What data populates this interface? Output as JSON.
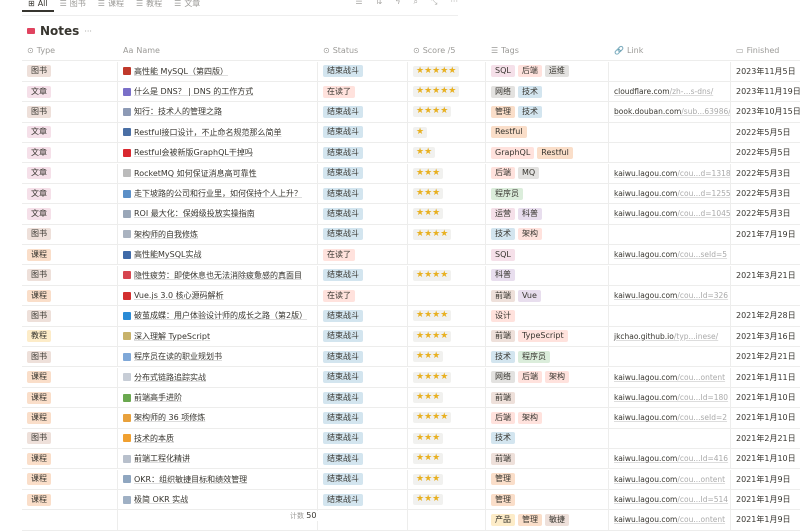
{
  "views": [
    {
      "label": "All",
      "icon": "table-icon",
      "active": true
    },
    {
      "label": "图书",
      "icon": "list-icon"
    },
    {
      "label": "课程",
      "icon": "list-icon"
    },
    {
      "label": "教程",
      "icon": "list-icon"
    },
    {
      "label": "文章",
      "icon": "list-icon"
    }
  ],
  "toolbar": [
    {
      "icon": "filter-icon",
      "glyph": "☰"
    },
    {
      "icon": "sort-icon",
      "glyph": "⇅"
    },
    {
      "icon": "automation-bolt-icon",
      "glyph": "ϟ"
    },
    {
      "icon": "search-icon",
      "glyph": "⌕"
    },
    {
      "icon": "expand-icon",
      "glyph": "⤡"
    },
    {
      "icon": "more-icon",
      "glyph": "···"
    }
  ],
  "title": "Notes",
  "title_more": "···",
  "columns": [
    {
      "label": "Type",
      "glyph": "⊙"
    },
    {
      "label": "Name",
      "glyph": "Aa"
    },
    {
      "label": "Status",
      "glyph": "⊙"
    },
    {
      "label": "Score /5",
      "glyph": "⊙"
    },
    {
      "label": "Tags",
      "glyph": "☰"
    },
    {
      "label": "Link",
      "glyph": "🔗"
    },
    {
      "label": "Finished",
      "glyph": "▭"
    }
  ],
  "type_colors": {
    "图书": "#eee0da",
    "文章": "#f5e0e9",
    "课程": "#fadec9",
    "教程": "#fdecc8"
  },
  "status_colors": {
    "结束战斗": "#d3e5ef",
    "在读了": "#ffe2dd"
  },
  "tag_colors": {
    "SQL": "#f5e0e9",
    "后端": "#ffe2dd",
    "运维": "#e3e2e0",
    "网络": "#e3e2e0",
    "技术": "#d3e5ef",
    "管理": "#fadec9",
    "Restful": "#fadec9",
    "GraphQL": "#ffe2dd",
    "MQ": "#e3e2e0",
    "程序员": "#dbeddb",
    "运营": "#f5e0e9",
    "科普": "#e8deee",
    "架构": "#ffe2dd",
    "前端": "#eee0da",
    "Vue": "#e8deee",
    "设计": "#ffe2dd",
    "TypeScript": "#ffe2dd",
    "产品": "#fdecc8",
    "敏捷": "#eee0da"
  },
  "rows": [
    {
      "type": "图书",
      "icon": "feather-icon",
      "icolor": "#c0392b",
      "name": "高性能 MySQL（第四版）",
      "status": "结束战斗",
      "score": 5,
      "tags": [
        "SQL",
        "后端",
        "运维"
      ],
      "link_host": "",
      "link_path": "",
      "finished": "2023年11月5日"
    },
    {
      "type": "文章",
      "icon": "network-icon",
      "icolor": "#7a6fc8",
      "name": "什么是 DNS？ | DNS 的工作方式",
      "status": "在读了",
      "score": 5,
      "tags": [
        "网络",
        "技术"
      ],
      "link_host": "cloudflare.com",
      "link_path": "/zh-...s-dns/",
      "finished": "2023年11月19日"
    },
    {
      "type": "图书",
      "icon": "book-icon",
      "icolor": "#8d9ab5",
      "name": "知行：技术人的管理之路",
      "status": "结束战斗",
      "score": 4,
      "tags": [
        "管理",
        "技术"
      ],
      "link_host": "book.douban.com",
      "link_path": "/sub...63986/",
      "finished": "2023年10月15日"
    },
    {
      "type": "文章",
      "icon": "glasses-icon",
      "icolor": "#4a6fa5",
      "name": "Restful接口设计，不止命名规范那么简单",
      "status": "结束战斗",
      "score": 1,
      "tags": [
        "Restful"
      ],
      "link_host": "",
      "link_path": "",
      "finished": "2022年5月5日"
    },
    {
      "type": "文章",
      "icon": "ribbon-icon",
      "icolor": "#d9282f",
      "name": "Restful会被新版GraphQL干掉吗",
      "status": "结束战斗",
      "score": 2,
      "tags": [
        "GraphQL",
        "Restful"
      ],
      "link_host": "",
      "link_path": "",
      "finished": "2022年5月5日"
    },
    {
      "type": "文章",
      "icon": "coin-icon",
      "icolor": "#bbbbbb",
      "name": "RocketMQ 如何保证消息高可靠性",
      "status": "结束战斗",
      "score": 3,
      "tags": [
        "后端",
        "MQ"
      ],
      "link_host": "kaiwu.lagou.com",
      "link_path": "/cou...d=1318",
      "finished": "2022年5月3日"
    },
    {
      "type": "文章",
      "icon": "chart-icon",
      "icolor": "#5b8fc7",
      "name": "走下坡路的公司和行业里，如何保持个人上升？",
      "status": "结束战斗",
      "score": 3,
      "tags": [
        "程序员"
      ],
      "link_host": "kaiwu.lagou.com",
      "link_path": "/cou...d=1255",
      "finished": "2022年5月3日"
    },
    {
      "type": "文章",
      "icon": "people-icon",
      "icolor": "#9aa7b8",
      "name": "ROI 最大化：保姆级投放实操指南",
      "status": "结束战斗",
      "score": 3,
      "tags": [
        "运营",
        "科普"
      ],
      "link_host": "kaiwu.lagou.com",
      "link_path": "/cou...d=1045",
      "finished": "2022年5月3日"
    },
    {
      "type": "图书",
      "icon": "bookmark-icon",
      "icolor": "#aab3c0",
      "name": "架构师的自我修炼",
      "status": "结束战斗",
      "score": 4,
      "tags": [
        "技术",
        "架构"
      ],
      "link_host": "",
      "link_path": "",
      "finished": "2021年7月19日"
    },
    {
      "type": "课程",
      "icon": "ship-icon",
      "icolor": "#3e6aa8",
      "name": "高性能MySQL实战",
      "status": "在读了",
      "score": 0,
      "tags": [
        "SQL"
      ],
      "link_host": "kaiwu.lagou.com",
      "link_path": "/cou...seId=5",
      "finished": ""
    },
    {
      "type": "图书",
      "icon": "car-icon",
      "icolor": "#d6454f",
      "name": "隐性疲劳：即使休息也无法消除疲惫感的真面目",
      "status": "结束战斗",
      "score": 4,
      "tags": [
        "科普"
      ],
      "link_host": "",
      "link_path": "",
      "finished": "2021年3月21日"
    },
    {
      "type": "课程",
      "icon": "flag-icon",
      "icolor": "#d32f2f",
      "name": "Vue.js 3.0 核心源码解析",
      "status": "在读了",
      "score": 0,
      "tags": [
        "前端",
        "Vue"
      ],
      "link_host": "kaiwu.lagou.com",
      "link_path": "/cou...Id=326",
      "finished": ""
    },
    {
      "type": "图书",
      "icon": "wave-icon",
      "icolor": "#2a8bd6",
      "name": "破茧成蝶：用户体验设计师的成长之路（第2版）",
      "status": "结束战斗",
      "score": 4,
      "tags": [
        "设计"
      ],
      "link_host": "",
      "link_path": "",
      "finished": "2021年2月28日"
    },
    {
      "type": "教程",
      "icon": "books-icon",
      "icolor": "#c8b26a",
      "name": "深入理解 TypeScript",
      "status": "结束战斗",
      "score": 4,
      "tags": [
        "前端",
        "TypeScript"
      ],
      "link_host": "jkchao.github.io",
      "link_path": "/typ...inese/",
      "finished": "2021年3月16日"
    },
    {
      "type": "图书",
      "icon": "pill-icon",
      "icolor": "#7fa8d8",
      "name": "程序员在读的职业规划书",
      "status": "结束战斗",
      "score": 3,
      "tags": [
        "技术",
        "程序员"
      ],
      "link_host": "",
      "link_path": "",
      "finished": "2021年2月21日"
    },
    {
      "type": "课程",
      "icon": "circle-icon",
      "icolor": "#c7cdd6",
      "name": "分布式链路追踪实战",
      "status": "结束战斗",
      "score": 4,
      "tags": [
        "网络",
        "后端",
        "架构"
      ],
      "link_host": "kaiwu.lagou.com",
      "link_path": "/cou...ontent",
      "finished": "2021年1月11日"
    },
    {
      "type": "课程",
      "icon": "money-icon",
      "icolor": "#6aa84f",
      "name": "前端高手进阶",
      "status": "结束战斗",
      "score": 3,
      "tags": [
        "前端"
      ],
      "link_host": "kaiwu.lagou.com",
      "link_path": "/cou...Id=180",
      "finished": "2021年1月10日"
    },
    {
      "type": "课程",
      "icon": "bread-icon",
      "icolor": "#e8a13c",
      "name": "架构师的 36 项修炼",
      "status": "结束战斗",
      "score": 4,
      "tags": [
        "后端",
        "架构"
      ],
      "link_host": "kaiwu.lagou.com",
      "link_path": "/cou...seId=2",
      "finished": "2021年1月10日"
    },
    {
      "type": "图书",
      "icon": "lock-icon",
      "icolor": "#f0a030",
      "name": "技术的本质",
      "status": "结束战斗",
      "score": 3,
      "tags": [
        "技术"
      ],
      "link_host": "",
      "link_path": "",
      "finished": "2021年2月21日"
    },
    {
      "type": "课程",
      "icon": "document-icon",
      "icolor": "#b8c0cc",
      "name": "前端工程化精讲",
      "status": "结束战斗",
      "score": 3,
      "tags": [
        "前端"
      ],
      "link_host": "kaiwu.lagou.com",
      "link_path": "/cou...Id=416",
      "finished": "2021年1月10日"
    },
    {
      "type": "课程",
      "icon": "ring-icon",
      "icolor": "#8fa6c0",
      "name": "OKR：组织敏捷目标和绩效管理",
      "status": "结束战斗",
      "score": 3,
      "tags": [
        "管理"
      ],
      "link_host": "kaiwu.lagou.com",
      "link_path": "/cou...ontent",
      "finished": "2021年1月9日"
    },
    {
      "type": "课程",
      "icon": "notepad-icon",
      "icolor": "#9fb0c4",
      "name": "极简 OKR 实战",
      "status": "结束战斗",
      "score": 3,
      "tags": [
        "管理"
      ],
      "link_host": "kaiwu.lagou.com",
      "link_path": "/cou...Id=514",
      "finished": "2021年1月9日"
    },
    {
      "type": "",
      "icon": "",
      "icolor": "",
      "name": "",
      "status": "",
      "score": 0,
      "tags": [
        "产品",
        "管理",
        "敏捷"
      ],
      "link_host": "kaiwu.lagou.com",
      "link_path": "/cou...ontent",
      "finished": "2021年1月9日"
    }
  ],
  "footer": {
    "label": "计数",
    "count": "50"
  }
}
